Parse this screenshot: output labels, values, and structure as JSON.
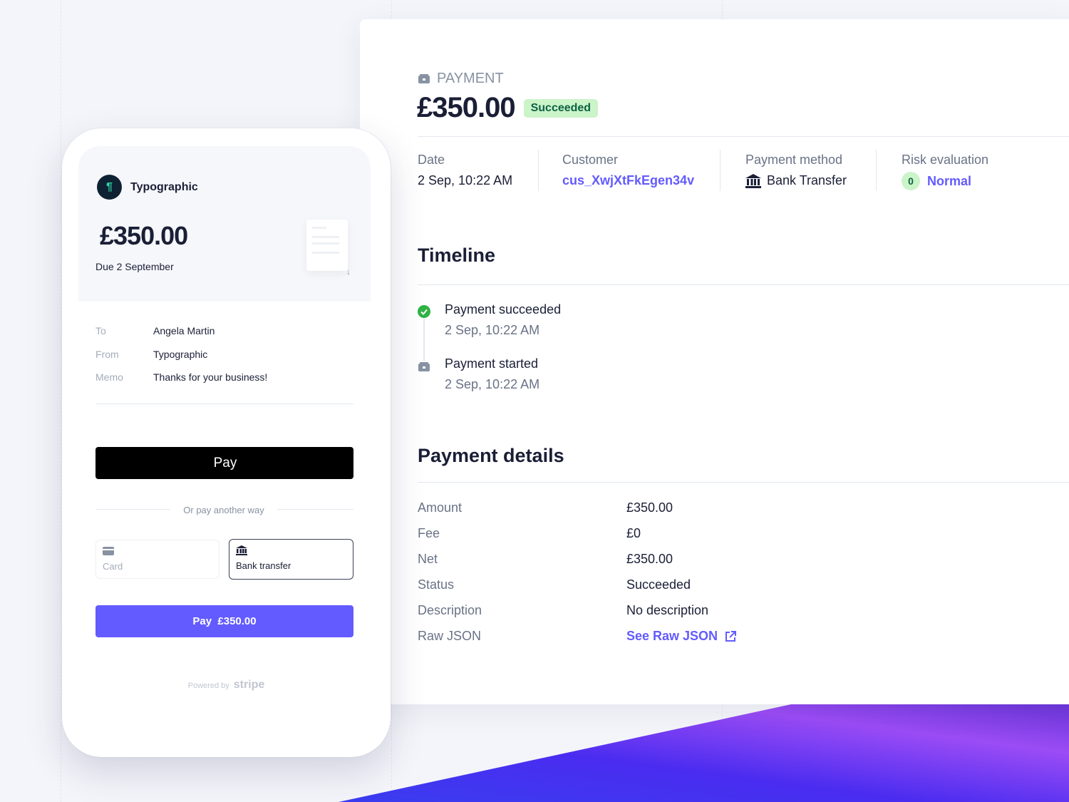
{
  "colors": {
    "accent": "#635bff",
    "success": "#2fb344",
    "badge_bg": "#cbf4c9",
    "dark": "#1a1f36"
  },
  "dashboard": {
    "section_label": "PAYMENT",
    "amount": "£350.00",
    "status_badge": "Succeeded",
    "summary": [
      {
        "label": "Date",
        "value": "2 Sep, 10:22 AM"
      },
      {
        "label": "Customer",
        "value": "cus_XwjXtFkEgen34v"
      },
      {
        "label": "Payment method",
        "value": "Bank Transfer",
        "icon": "bank-icon"
      },
      {
        "label": "Risk evaluation",
        "score": "0",
        "value": "Normal"
      }
    ],
    "timeline": {
      "title": "Timeline",
      "events": [
        {
          "title": "Payment succeeded",
          "time": "2 Sep, 10:22 AM",
          "icon": "check-circle-icon"
        },
        {
          "title": "Payment started",
          "time": "2 Sep, 10:22 AM",
          "icon": "payment-icon"
        }
      ]
    },
    "details": {
      "title": "Payment details",
      "rows": [
        {
          "label": "Amount",
          "value": "£350.00"
        },
        {
          "label": "Fee",
          "value": "£0"
        },
        {
          "label": "Net",
          "value": "£350.00"
        },
        {
          "label": "Status",
          "value": "Succeeded"
        },
        {
          "label": "Description",
          "value": "No description"
        },
        {
          "label": "Raw JSON",
          "value": "See Raw JSON",
          "icon": "external-link-icon"
        }
      ]
    }
  },
  "checkout": {
    "merchant": "Typographic",
    "amount": "£350.00",
    "due": "Due 2 September",
    "fields": [
      {
        "label": "To",
        "value": "Angela Martin"
      },
      {
        "label": "From",
        "value": "Typographic"
      },
      {
        "label": "Memo",
        "value": "Thanks for your business!"
      }
    ],
    "apple_pay": "Pay",
    "divider": "Or pay another way",
    "methods": [
      {
        "label": "Card",
        "icon": "card-icon",
        "selected": false
      },
      {
        "label": "Bank transfer",
        "icon": "bank-icon",
        "selected": true
      }
    ],
    "pay_button": "Pay  £350.00",
    "powered_by": "Powered by",
    "brand": "stripe"
  }
}
